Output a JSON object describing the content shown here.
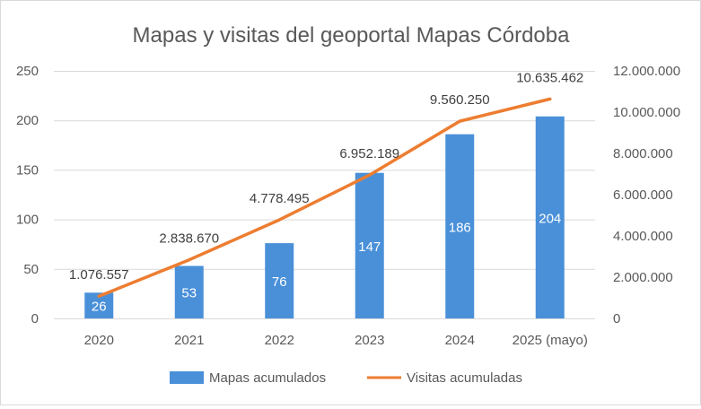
{
  "chart_data": {
    "type": "bar+line",
    "title": "Mapas y visitas del geoportal Mapas Córdoba",
    "categories": [
      "2020",
      "2021",
      "2022",
      "2023",
      "2024",
      "2025 (mayo)"
    ],
    "series": [
      {
        "name": "Mapas acumulados",
        "type": "bar",
        "axis": "left",
        "color": "#4a90d9",
        "values": [
          26,
          53,
          76,
          147,
          186,
          204
        ],
        "labels": [
          "26",
          "53",
          "76",
          "147",
          "186",
          "204"
        ]
      },
      {
        "name": "Visitas acumuladas",
        "type": "line",
        "axis": "right",
        "color": "#ed7d31",
        "values": [
          1076557,
          2838670,
          4778495,
          6952189,
          9560250,
          10635462
        ],
        "labels": [
          "1.076.557",
          "2.838.670",
          "4.778.495",
          "6.952.189",
          "9.560.250",
          "10.635.462"
        ]
      }
    ],
    "y_left": {
      "range": [
        0,
        250
      ],
      "ticks": [
        0,
        50,
        100,
        150,
        200,
        250
      ],
      "tick_labels": [
        "0",
        "50",
        "100",
        "150",
        "200",
        "250"
      ]
    },
    "y_right": {
      "range": [
        0,
        12000000
      ],
      "ticks": [
        0,
        2000000,
        4000000,
        6000000,
        8000000,
        10000000,
        12000000
      ],
      "tick_labels": [
        "0",
        "2.000.000",
        "4.000.000",
        "6.000.000",
        "8.000.000",
        "10.000.000",
        "12.000.000"
      ]
    },
    "grid": true,
    "legend_position": "bottom"
  }
}
